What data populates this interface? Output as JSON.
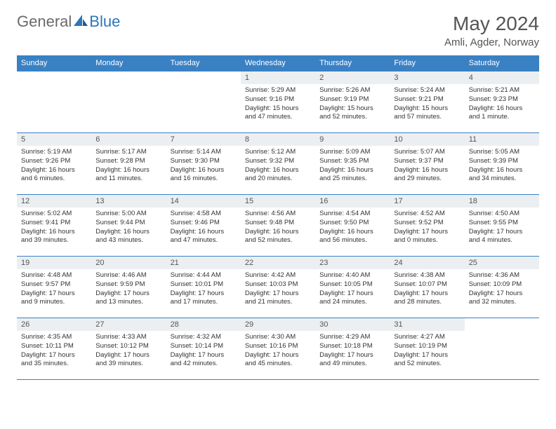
{
  "brand": {
    "general": "General",
    "blue": "Blue"
  },
  "title": "May 2024",
  "location": "Amli, Agder, Norway",
  "colors": {
    "header_bg": "#3a81c4",
    "daynum_bg": "#eceff1",
    "border": "#3a81c4"
  },
  "day_headers": [
    "Sunday",
    "Monday",
    "Tuesday",
    "Wednesday",
    "Thursday",
    "Friday",
    "Saturday"
  ],
  "weeks": [
    [
      {
        "num": "",
        "sunrise": "",
        "sunset": "",
        "daylight": ""
      },
      {
        "num": "",
        "sunrise": "",
        "sunset": "",
        "daylight": ""
      },
      {
        "num": "",
        "sunrise": "",
        "sunset": "",
        "daylight": ""
      },
      {
        "num": "1",
        "sunrise": "Sunrise: 5:29 AM",
        "sunset": "Sunset: 9:16 PM",
        "daylight": "Daylight: 15 hours and 47 minutes."
      },
      {
        "num": "2",
        "sunrise": "Sunrise: 5:26 AM",
        "sunset": "Sunset: 9:19 PM",
        "daylight": "Daylight: 15 hours and 52 minutes."
      },
      {
        "num": "3",
        "sunrise": "Sunrise: 5:24 AM",
        "sunset": "Sunset: 9:21 PM",
        "daylight": "Daylight: 15 hours and 57 minutes."
      },
      {
        "num": "4",
        "sunrise": "Sunrise: 5:21 AM",
        "sunset": "Sunset: 9:23 PM",
        "daylight": "Daylight: 16 hours and 1 minute."
      }
    ],
    [
      {
        "num": "5",
        "sunrise": "Sunrise: 5:19 AM",
        "sunset": "Sunset: 9:26 PM",
        "daylight": "Daylight: 16 hours and 6 minutes."
      },
      {
        "num": "6",
        "sunrise": "Sunrise: 5:17 AM",
        "sunset": "Sunset: 9:28 PM",
        "daylight": "Daylight: 16 hours and 11 minutes."
      },
      {
        "num": "7",
        "sunrise": "Sunrise: 5:14 AM",
        "sunset": "Sunset: 9:30 PM",
        "daylight": "Daylight: 16 hours and 16 minutes."
      },
      {
        "num": "8",
        "sunrise": "Sunrise: 5:12 AM",
        "sunset": "Sunset: 9:32 PM",
        "daylight": "Daylight: 16 hours and 20 minutes."
      },
      {
        "num": "9",
        "sunrise": "Sunrise: 5:09 AM",
        "sunset": "Sunset: 9:35 PM",
        "daylight": "Daylight: 16 hours and 25 minutes."
      },
      {
        "num": "10",
        "sunrise": "Sunrise: 5:07 AM",
        "sunset": "Sunset: 9:37 PM",
        "daylight": "Daylight: 16 hours and 29 minutes."
      },
      {
        "num": "11",
        "sunrise": "Sunrise: 5:05 AM",
        "sunset": "Sunset: 9:39 PM",
        "daylight": "Daylight: 16 hours and 34 minutes."
      }
    ],
    [
      {
        "num": "12",
        "sunrise": "Sunrise: 5:02 AM",
        "sunset": "Sunset: 9:41 PM",
        "daylight": "Daylight: 16 hours and 39 minutes."
      },
      {
        "num": "13",
        "sunrise": "Sunrise: 5:00 AM",
        "sunset": "Sunset: 9:44 PM",
        "daylight": "Daylight: 16 hours and 43 minutes."
      },
      {
        "num": "14",
        "sunrise": "Sunrise: 4:58 AM",
        "sunset": "Sunset: 9:46 PM",
        "daylight": "Daylight: 16 hours and 47 minutes."
      },
      {
        "num": "15",
        "sunrise": "Sunrise: 4:56 AM",
        "sunset": "Sunset: 9:48 PM",
        "daylight": "Daylight: 16 hours and 52 minutes."
      },
      {
        "num": "16",
        "sunrise": "Sunrise: 4:54 AM",
        "sunset": "Sunset: 9:50 PM",
        "daylight": "Daylight: 16 hours and 56 minutes."
      },
      {
        "num": "17",
        "sunrise": "Sunrise: 4:52 AM",
        "sunset": "Sunset: 9:52 PM",
        "daylight": "Daylight: 17 hours and 0 minutes."
      },
      {
        "num": "18",
        "sunrise": "Sunrise: 4:50 AM",
        "sunset": "Sunset: 9:55 PM",
        "daylight": "Daylight: 17 hours and 4 minutes."
      }
    ],
    [
      {
        "num": "19",
        "sunrise": "Sunrise: 4:48 AM",
        "sunset": "Sunset: 9:57 PM",
        "daylight": "Daylight: 17 hours and 9 minutes."
      },
      {
        "num": "20",
        "sunrise": "Sunrise: 4:46 AM",
        "sunset": "Sunset: 9:59 PM",
        "daylight": "Daylight: 17 hours and 13 minutes."
      },
      {
        "num": "21",
        "sunrise": "Sunrise: 4:44 AM",
        "sunset": "Sunset: 10:01 PM",
        "daylight": "Daylight: 17 hours and 17 minutes."
      },
      {
        "num": "22",
        "sunrise": "Sunrise: 4:42 AM",
        "sunset": "Sunset: 10:03 PM",
        "daylight": "Daylight: 17 hours and 21 minutes."
      },
      {
        "num": "23",
        "sunrise": "Sunrise: 4:40 AM",
        "sunset": "Sunset: 10:05 PM",
        "daylight": "Daylight: 17 hours and 24 minutes."
      },
      {
        "num": "24",
        "sunrise": "Sunrise: 4:38 AM",
        "sunset": "Sunset: 10:07 PM",
        "daylight": "Daylight: 17 hours and 28 minutes."
      },
      {
        "num": "25",
        "sunrise": "Sunrise: 4:36 AM",
        "sunset": "Sunset: 10:09 PM",
        "daylight": "Daylight: 17 hours and 32 minutes."
      }
    ],
    [
      {
        "num": "26",
        "sunrise": "Sunrise: 4:35 AM",
        "sunset": "Sunset: 10:11 PM",
        "daylight": "Daylight: 17 hours and 35 minutes."
      },
      {
        "num": "27",
        "sunrise": "Sunrise: 4:33 AM",
        "sunset": "Sunset: 10:12 PM",
        "daylight": "Daylight: 17 hours and 39 minutes."
      },
      {
        "num": "28",
        "sunrise": "Sunrise: 4:32 AM",
        "sunset": "Sunset: 10:14 PM",
        "daylight": "Daylight: 17 hours and 42 minutes."
      },
      {
        "num": "29",
        "sunrise": "Sunrise: 4:30 AM",
        "sunset": "Sunset: 10:16 PM",
        "daylight": "Daylight: 17 hours and 45 minutes."
      },
      {
        "num": "30",
        "sunrise": "Sunrise: 4:29 AM",
        "sunset": "Sunset: 10:18 PM",
        "daylight": "Daylight: 17 hours and 49 minutes."
      },
      {
        "num": "31",
        "sunrise": "Sunrise: 4:27 AM",
        "sunset": "Sunset: 10:19 PM",
        "daylight": "Daylight: 17 hours and 52 minutes."
      },
      {
        "num": "",
        "sunrise": "",
        "sunset": "",
        "daylight": ""
      }
    ]
  ]
}
